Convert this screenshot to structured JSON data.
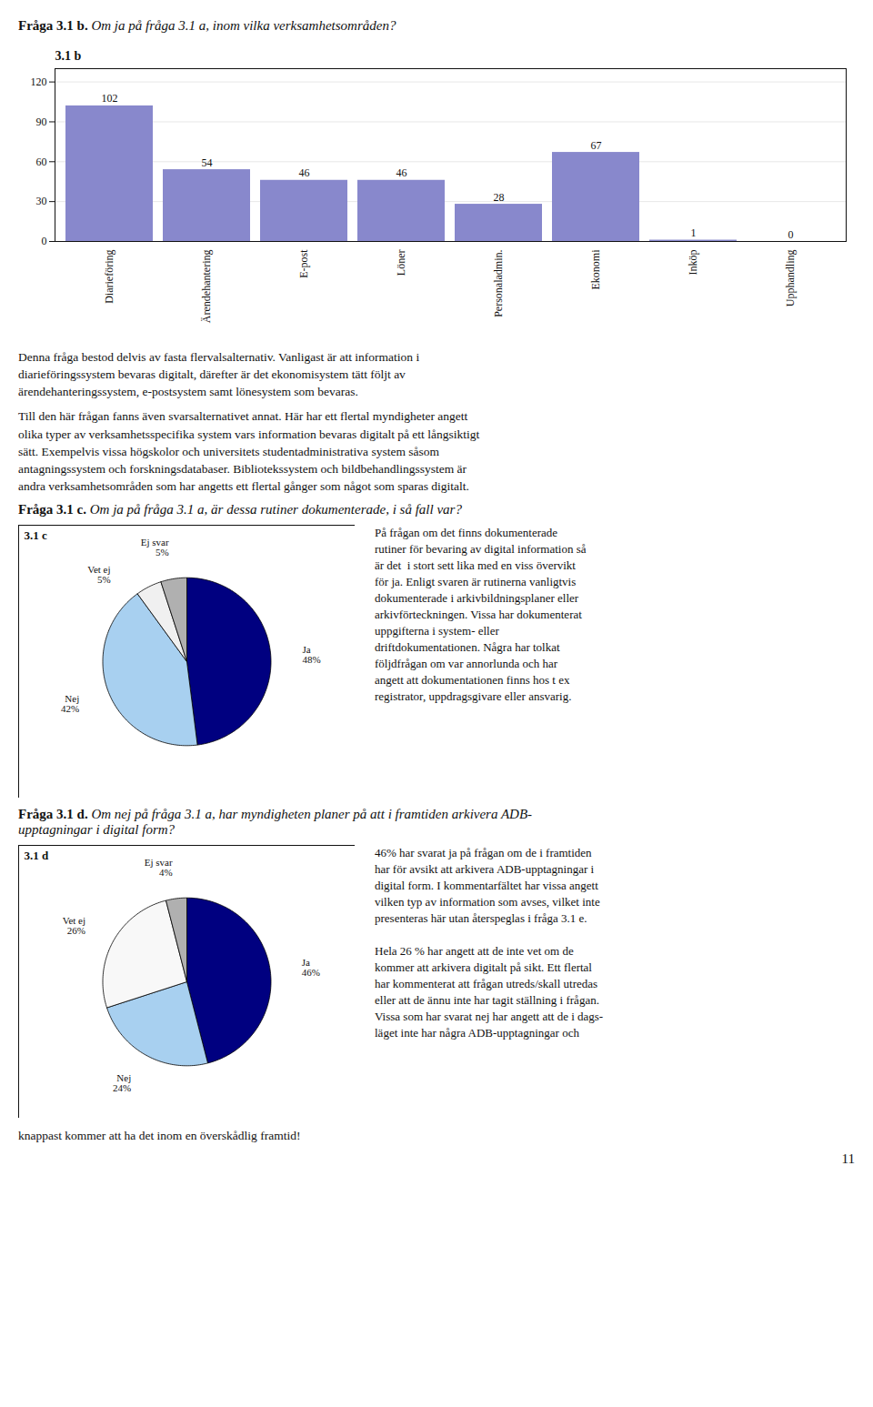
{
  "chart_data": [
    {
      "type": "bar",
      "title": "Fråga 3.1 b.",
      "subtitle": "Om ja på fråga 3.1 a, inom vilka verksamhetsområden?",
      "categories": [
        "Diarieföring",
        "Ärendehantering",
        "E-post",
        "Löner",
        "Personaladmin.",
        "Ekonomi",
        "Inköp",
        "Upphandling"
      ],
      "values": [
        102,
        54,
        46,
        46,
        28,
        67,
        1,
        0
      ],
      "color": "#8888cc",
      "ylim": [
        0,
        130
      ],
      "yticks": [
        0,
        30,
        60,
        90,
        120
      ],
      "grid": true,
      "data_labels": true,
      "annotations": [
        "3.1 b",
        "Denna fråga bestod delvis av fasta flervalsalternativ. Vanligast är att information i\ndiarieföringssystem bevaras digitalt, därefter är det ekonomisystem tätt följt av\närendehanteringssystem, e-postsystem samt lönesystem som bevaras.",
        "Till den här frågan fanns även svarsalternativet annat. Här har ett flertal myndigheter angett\nolika typer av verksamhetsspecifika system vars information bevaras digitalt på ett långsiktigt\nsätt. Exempelvis vissa högskolor och universitets studentadministrativa system såsom\nantagningssystem och forskningsdatabaser. Bibliotekssystem och bildbehandlingssystem är\nandra verksamhetsområden som har angetts ett flertal gånger som något som sparas digitalt."
      ]
    },
    {
      "type": "pie",
      "title": "Fråga 3.1 c.",
      "subtitle": "Om ja på fråga 3.1 a, är dessa rutiner dokumenterade, i så fall var?",
      "categories": [
        "Ja",
        "Nej",
        "Vet ej",
        "Ej svar"
      ],
      "values": [
        48,
        42,
        5,
        5
      ],
      "value_labels": [
        "48%",
        "42%",
        "5%",
        "5%"
      ],
      "colors": [
        "#000080",
        "#a8d0f0",
        "#f0f0f0",
        "#b0b0b0"
      ],
      "data_labels": true,
      "annotations": [
        "3.1 c",
        "På frågan om det finns dokumenterade\nrutiner för bevaring av digital information så\när det  i stort sett lika med en viss övervikt\nför ja. Enligt svaren är rutinerna vanligtvis\ndokumenterade i arkivbildningsplaner eller\narkivförteckningen. Vissa har dokumenterat\nuppgifterna i system- eller\ndriftdokumentationen. Några har tolkat\nföljdfrågan om var annorlunda och har\nangett att dokumentationen finns hos t ex\nregistrator, uppdragsgivare eller ansvarig."
      ]
    },
    {
      "type": "pie",
      "title": "Fråga 3.1 d.",
      "subtitle": "Om nej på fråga 3.1 a, har myndigheten planer på att i framtiden arkivera ADB-\nupptagningar i digital form?",
      "categories": [
        "Ja",
        "Nej",
        "Vet ej",
        "Ej svar"
      ],
      "values": [
        46,
        24,
        26,
        4
      ],
      "value_labels": [
        "46%",
        "24%",
        "26%",
        "4%"
      ],
      "colors": [
        "#000080",
        "#a8d0f0",
        "#f8f8f8",
        "#b0b0b0"
      ],
      "data_labels": true,
      "annotations": [
        "3.1 d",
        "46% har svarat ja på frågan om de i framtiden\nhar för avsikt att arkivera ADB-upptagningar i\ndigital form. I kommentarfältet har vissa angett\nvilken typ av information som avses, vilket inte\npresenteras här utan återspeglas i fråga 3.1 e.\n\nHela 26 % har angett att de inte vet om de\nkommer att arkivera digitalt på sikt. Ett flertal\nhar kommenterat att frågan utreds/skall utredas\neller att de ännu inte har tagit ställning i frågan.\nVissa som har svarat nej har angett att de i dags-\nläget inte har några ADB-upptagningar och",
        "knappast kommer att ha det inom en överskådlig framtid!",
        "11"
      ]
    }
  ]
}
